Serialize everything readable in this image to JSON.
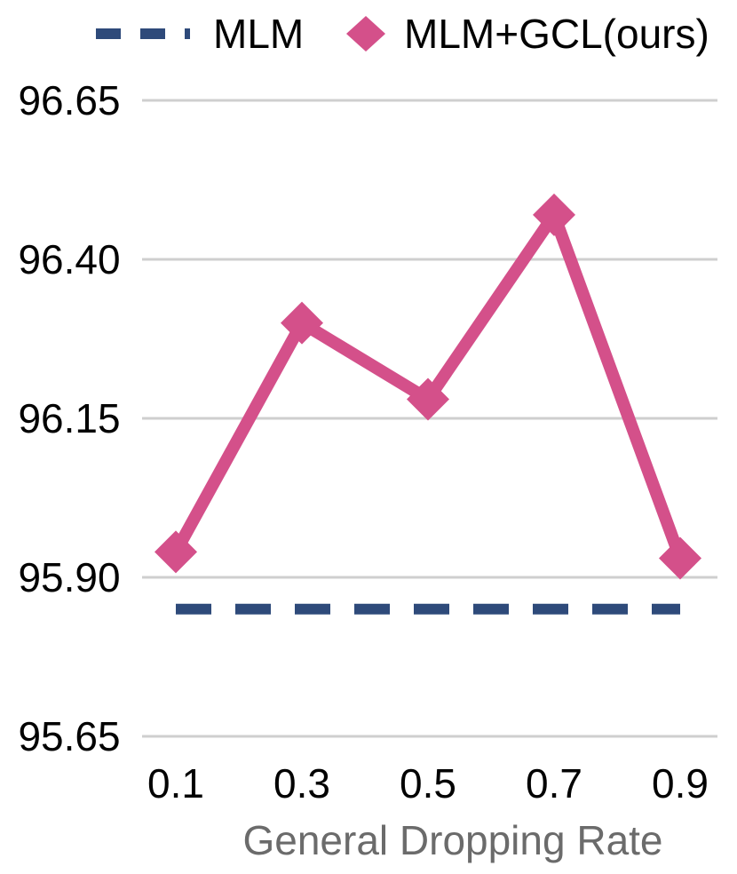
{
  "chart_data": {
    "type": "line",
    "xlabel": "General Dropping Rate",
    "ylabel": "",
    "x": [
      0.1,
      0.3,
      0.5,
      0.7,
      0.9
    ],
    "x_tick_labels": [
      "0.1",
      "0.3",
      "0.5",
      "0.7",
      "0.9"
    ],
    "y_tick_values": [
      96.65,
      96.4,
      96.15,
      95.9,
      95.65
    ],
    "y_tick_labels": [
      "96.65",
      "96.40",
      "96.15",
      "95.90",
      "95.65"
    ],
    "ylim": [
      95.65,
      96.65
    ],
    "grid": true,
    "legend_position": "top",
    "series": [
      {
        "name": "MLM",
        "style": "dashed",
        "marker": "none",
        "color": "#2e4a7a",
        "values": [
          95.85,
          95.85,
          95.85,
          95.85,
          95.85
        ]
      },
      {
        "name": "MLM+GCL(ours)",
        "style": "solid",
        "marker": "diamond",
        "color": "#d4508a",
        "values": [
          95.94,
          96.3,
          96.18,
          96.47,
          95.93
        ]
      }
    ]
  }
}
